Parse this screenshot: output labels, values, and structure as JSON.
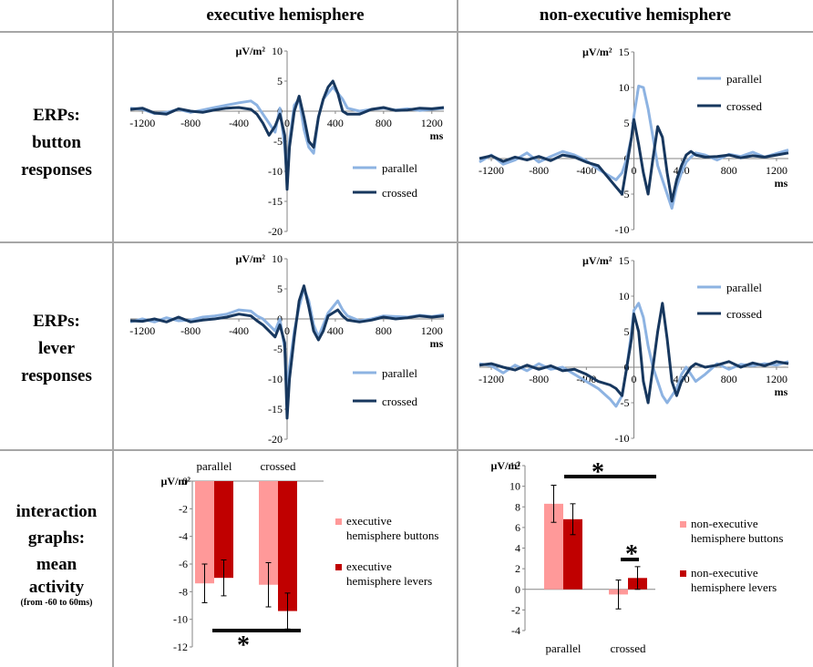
{
  "columns": {
    "executive": "executive hemisphere",
    "nonexecutive": "non-executive hemisphere"
  },
  "rows": {
    "button": [
      "ERPs:",
      "button",
      "responses"
    ],
    "lever": [
      "ERPs:",
      "lever",
      "responses"
    ],
    "interaction": [
      "interaction",
      "graphs:",
      "mean",
      "activity"
    ],
    "interaction_note": "(from -60 to 60ms)"
  },
  "colors": {
    "parallel": "#8DB3E2",
    "crossed": "#17375E",
    "light_red": "#FF9999",
    "dark_red": "#C00000",
    "grid_line": "#A6A6A6"
  },
  "chart_data": [
    {
      "id": "erp-exec-button",
      "type": "line",
      "ylabel": "µV/m²",
      "xlabel": "ms",
      "xlim": [
        -1300,
        1300
      ],
      "ylim": [
        -20,
        10
      ],
      "xticks": [
        -1200,
        -800,
        -400,
        0,
        400,
        800,
        1200
      ],
      "yticks": [
        10,
        5,
        0,
        -5,
        -10,
        -15,
        -20
      ],
      "legend": [
        "parallel",
        "crossed"
      ],
      "legend_position": "bottom-right",
      "series": [
        {
          "name": "parallel",
          "x": [
            -1300,
            -1200,
            -1100,
            -1000,
            -900,
            -800,
            -700,
            -600,
            -500,
            -400,
            -300,
            -250,
            -200,
            -150,
            -100,
            -60,
            -20,
            0,
            20,
            60,
            100,
            140,
            180,
            220,
            260,
            300,
            340,
            380,
            420,
            460,
            500,
            600,
            700,
            800,
            900,
            1000,
            1100,
            1200,
            1300
          ],
          "y": [
            0.5,
            0.3,
            -0.4,
            -0.2,
            0.3,
            -0.2,
            0.2,
            0.6,
            1,
            1.4,
            1.7,
            1,
            -0.5,
            -2,
            -3.5,
            0.5,
            -6,
            -11,
            -5,
            1,
            2,
            -3,
            -6,
            -7,
            -1,
            2,
            3,
            4,
            3,
            2,
            0.5,
            0,
            0.3,
            0.5,
            0.2,
            0.4,
            0.1,
            0.3,
            0.5
          ]
        },
        {
          "name": "crossed",
          "x": [
            -1300,
            -1200,
            -1100,
            -1000,
            -900,
            -800,
            -700,
            -600,
            -500,
            -400,
            -300,
            -250,
            -200,
            -150,
            -100,
            -60,
            -20,
            0,
            20,
            60,
            100,
            140,
            180,
            220,
            260,
            300,
            340,
            380,
            420,
            460,
            500,
            600,
            700,
            800,
            900,
            1000,
            1100,
            1200,
            1300
          ],
          "y": [
            0.3,
            0.5,
            -0.3,
            -0.5,
            0.4,
            0,
            -0.2,
            0.2,
            0.5,
            0.6,
            0.3,
            -0.5,
            -2,
            -4,
            -2.5,
            -0.5,
            -4,
            -13,
            -6,
            0,
            2.5,
            -1,
            -5,
            -6,
            -1,
            2,
            4,
            5,
            3,
            0,
            -0.5,
            -0.5,
            0.3,
            0.6,
            0.1,
            0.2,
            0.5,
            0.4,
            0.6
          ]
        }
      ]
    },
    {
      "id": "erp-nonexec-button",
      "type": "line",
      "ylabel": "µV/m²",
      "xlabel": "ms",
      "xlim": [
        -1300,
        1300
      ],
      "ylim": [
        -10,
        15
      ],
      "xticks": [
        -1200,
        -800,
        -400,
        0,
        400,
        800,
        1200
      ],
      "yticks": [
        15,
        10,
        5,
        0,
        -5,
        -10
      ],
      "legend": [
        "parallel",
        "crossed"
      ],
      "legend_position": "top-right",
      "series": [
        {
          "name": "parallel",
          "x": [
            -1300,
            -1200,
            -1100,
            -1000,
            -900,
            -800,
            -700,
            -600,
            -500,
            -400,
            -300,
            -200,
            -150,
            -100,
            -60,
            -20,
            0,
            40,
            80,
            120,
            160,
            200,
            240,
            280,
            320,
            360,
            400,
            440,
            480,
            520,
            600,
            700,
            800,
            900,
            1000,
            1100,
            1200,
            1300
          ],
          "y": [
            -0.5,
            0.5,
            -0.8,
            -0.2,
            0.8,
            -0.5,
            0.3,
            1,
            0.5,
            -0.3,
            -1.5,
            -2.5,
            -3,
            -2,
            0,
            3,
            6,
            10.2,
            10,
            7,
            3,
            -1,
            -3,
            -5,
            -7,
            -4,
            -2,
            -0.5,
            0.2,
            0.8,
            0.5,
            -0.2,
            0.6,
            0.3,
            0.9,
            0.2,
            0.7,
            1.2
          ]
        },
        {
          "name": "crossed",
          "x": [
            -1300,
            -1200,
            -1100,
            -1000,
            -900,
            -800,
            -700,
            -600,
            -500,
            -400,
            -300,
            -200,
            -150,
            -100,
            -60,
            -20,
            0,
            40,
            80,
            120,
            160,
            200,
            240,
            280,
            320,
            360,
            400,
            440,
            480,
            520,
            600,
            700,
            800,
            900,
            1000,
            1100,
            1200,
            1300
          ],
          "y": [
            0,
            0.4,
            -0.4,
            0.2,
            -0.2,
            0.3,
            -0.3,
            0.5,
            0.2,
            -0.5,
            -1,
            -3,
            -4,
            -5,
            -1,
            3,
            5.5,
            2,
            -2,
            -5,
            0,
            4.5,
            3,
            -2,
            -6,
            -3,
            -1,
            0.5,
            1,
            0.5,
            0.2,
            0.3,
            0.5,
            0.1,
            0.4,
            0.2,
            0.5,
            0.8
          ]
        }
      ]
    },
    {
      "id": "erp-exec-lever",
      "type": "line",
      "ylabel": "µV/m²",
      "xlabel": "ms",
      "xlim": [
        -1300,
        1300
      ],
      "ylim": [
        -20,
        10
      ],
      "xticks": [
        -1200,
        -800,
        -400,
        0,
        400,
        800,
        1200
      ],
      "yticks": [
        10,
        5,
        0,
        -5,
        -10,
        -15,
        -20
      ],
      "legend": [
        "parallel",
        "crossed"
      ],
      "legend_position": "bottom-right",
      "series": [
        {
          "name": "parallel",
          "x": [
            -1300,
            -1200,
            -1100,
            -1000,
            -900,
            -800,
            -700,
            -600,
            -500,
            -400,
            -300,
            -250,
            -200,
            -150,
            -100,
            -60,
            -20,
            0,
            20,
            60,
            100,
            140,
            180,
            220,
            260,
            300,
            340,
            380,
            420,
            460,
            500,
            600,
            700,
            800,
            900,
            1000,
            1100,
            1200,
            1300
          ],
          "y": [
            -0.5,
            0,
            -0.5,
            0.2,
            -0.3,
            -0.2,
            0.3,
            0.5,
            0.8,
            1.5,
            1.3,
            0.5,
            0,
            -1,
            -2,
            0,
            -5,
            -12,
            -8,
            -2,
            2,
            5,
            3,
            -1,
            -3,
            -1,
            1,
            2,
            3,
            1.5,
            0.5,
            -0.3,
            0,
            0.5,
            0.4,
            0.3,
            0.6,
            0.4,
            0.7
          ]
        },
        {
          "name": "crossed",
          "x": [
            -1300,
            -1200,
            -1100,
            -1000,
            -900,
            -800,
            -700,
            -600,
            -500,
            -400,
            -300,
            -250,
            -200,
            -150,
            -100,
            -60,
            -20,
            0,
            20,
            60,
            100,
            140,
            180,
            220,
            260,
            300,
            340,
            380,
            420,
            460,
            500,
            600,
            700,
            800,
            900,
            1000,
            1100,
            1200,
            1300
          ],
          "y": [
            -0.3,
            -0.4,
            0,
            -0.5,
            0.3,
            -0.5,
            -0.2,
            0,
            0.3,
            0.8,
            0.5,
            -0.3,
            -1,
            -2,
            -3,
            -1,
            -4,
            -16.5,
            -10,
            -3,
            3,
            5.5,
            2,
            -2,
            -3.5,
            -2,
            0.5,
            1,
            1.5,
            0.5,
            -0.2,
            -0.5,
            -0.2,
            0.3,
            0,
            0.2,
            0.5,
            0.3,
            0.5
          ]
        }
      ]
    },
    {
      "id": "erp-nonexec-lever",
      "type": "line",
      "ylabel": "µV/m²",
      "xlabel": "ms",
      "xlim": [
        -1300,
        1300
      ],
      "ylim": [
        -10,
        15
      ],
      "xticks": [
        -1200,
        -800,
        -400,
        0,
        400,
        800,
        1200
      ],
      "yticks": [
        15,
        10,
        5,
        0,
        -5,
        -10
      ],
      "legend": [
        "parallel",
        "crossed"
      ],
      "legend_position": "top-right",
      "series": [
        {
          "name": "parallel",
          "x": [
            -1300,
            -1200,
            -1100,
            -1000,
            -900,
            -800,
            -700,
            -600,
            -500,
            -400,
            -300,
            -200,
            -150,
            -100,
            -60,
            -20,
            0,
            40,
            80,
            120,
            160,
            200,
            240,
            280,
            320,
            360,
            400,
            440,
            480,
            520,
            600,
            700,
            800,
            900,
            1000,
            1100,
            1200,
            1300
          ],
          "y": [
            0.5,
            0.2,
            -0.8,
            0.3,
            -0.5,
            0.5,
            -0.3,
            0,
            -1,
            -2,
            -3,
            -4.5,
            -5.5,
            -4,
            0,
            5,
            8,
            9,
            7,
            3,
            0,
            -2,
            -4,
            -5,
            -4,
            -3,
            -1,
            0,
            -1,
            -2,
            -1,
            0.5,
            -0.3,
            0.4,
            0.2,
            0.5,
            0.3,
            0.8
          ]
        },
        {
          "name": "crossed",
          "x": [
            -1300,
            -1200,
            -1100,
            -1000,
            -900,
            -800,
            -700,
            -600,
            -500,
            -400,
            -300,
            -200,
            -150,
            -100,
            -60,
            -20,
            0,
            40,
            80,
            120,
            160,
            200,
            240,
            280,
            320,
            360,
            400,
            440,
            480,
            520,
            600,
            700,
            800,
            900,
            1000,
            1100,
            1200,
            1300
          ],
          "y": [
            0.3,
            0.5,
            0,
            -0.4,
            0.3,
            -0.3,
            0.2,
            -0.5,
            -0.3,
            -1,
            -2,
            -2.5,
            -3,
            -4,
            0,
            4,
            7.5,
            5,
            -2,
            -5,
            0,
            5,
            9,
            4,
            -2,
            -4,
            -2,
            -1,
            0,
            0.5,
            0,
            0.3,
            0.8,
            0,
            0.6,
            0.2,
            0.8,
            0.5
          ]
        }
      ]
    },
    {
      "id": "bar-exec",
      "type": "bar",
      "ylabel": "µV/m²",
      "categories": [
        "parallel",
        "crossed"
      ],
      "ylim": [
        -12,
        0
      ],
      "yticks": [
        0,
        -2,
        -4,
        -6,
        -8,
        -10,
        -12
      ],
      "series": [
        {
          "name": "executive hemisphere buttons",
          "values": [
            -7.4,
            -7.5
          ],
          "errors": [
            1.4,
            1.6
          ]
        },
        {
          "name": "executive hemisphere levers",
          "values": [
            -7.0,
            -9.4
          ],
          "errors": [
            1.3,
            1.3
          ]
        }
      ],
      "significance": [
        {
          "label": "*",
          "between": "levers parallel vs crossed"
        }
      ],
      "legend_position": "right"
    },
    {
      "id": "bar-nonexec",
      "type": "bar",
      "ylabel": "µV/m²",
      "categories": [
        "parallel",
        "crossed"
      ],
      "ylim": [
        -4,
        12
      ],
      "yticks": [
        12,
        10,
        8,
        6,
        4,
        2,
        0,
        -2,
        -4
      ],
      "series": [
        {
          "name": "non-executive hemisphere buttons",
          "values": [
            8.3,
            -0.5
          ],
          "errors": [
            1.8,
            1.4
          ]
        },
        {
          "name": "non-executive hemisphere levers",
          "values": [
            6.8,
            1.1
          ],
          "errors": [
            1.5,
            1.1
          ]
        }
      ],
      "significance": [
        {
          "label": "*",
          "between": "parallel vs crossed"
        },
        {
          "label": "*",
          "between": "crossed buttons vs levers"
        }
      ],
      "legend_position": "right"
    }
  ]
}
